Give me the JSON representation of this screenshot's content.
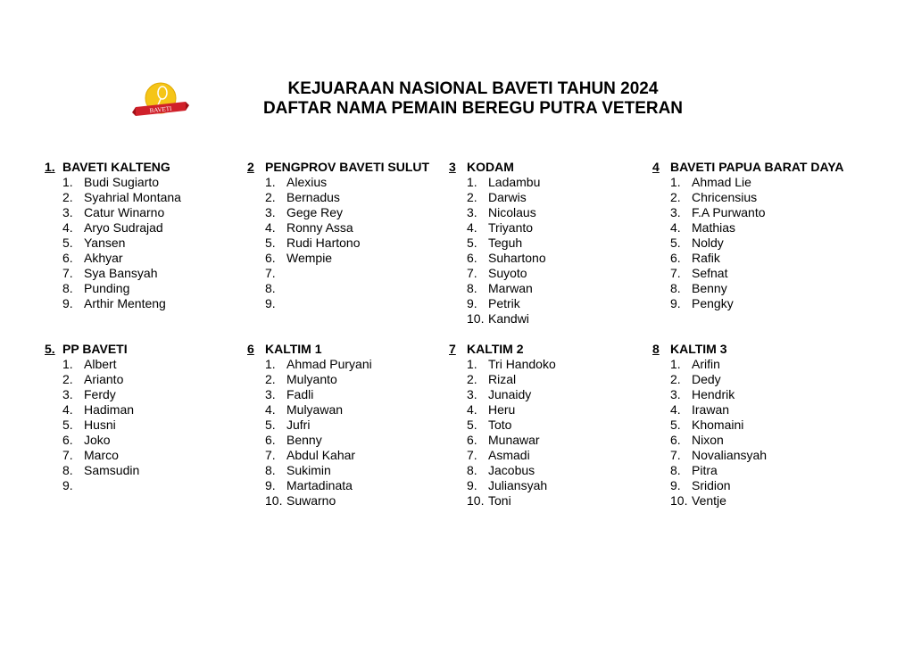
{
  "logo": {
    "text": "BAVETI",
    "colors": {
      "ball": "#f5c518",
      "ribbon": "#d0202a"
    }
  },
  "title": {
    "line1": "KEJUARAAN NASIONAL BAVETI TAHUN 2024",
    "line2": "DAFTAR NAMA PEMAIN BEREGU PUTRA VETERAN"
  },
  "teams": [
    {
      "number": "1.",
      "name": "BAVETI KALTENG",
      "players": [
        "Budi Sugiarto",
        "Syahrial Montana",
        "Catur Winarno",
        "Aryo Sudrajad",
        "Yansen",
        "Akhyar",
        "Sya Bansyah",
        "Punding",
        "Arthir Menteng"
      ]
    },
    {
      "number": "2",
      "name": "PENGPROV BAVETI SULUT",
      "players": [
        "Alexius",
        "Bernadus",
        "Gege Rey",
        "Ronny Assa",
        "Rudi Hartono",
        "Wempie",
        "",
        "",
        ""
      ]
    },
    {
      "number": "3",
      "name": "KODAM",
      "players": [
        "Ladambu",
        "Darwis",
        "Nicolaus",
        "Triyanto",
        "Teguh",
        "Suhartono",
        "Suyoto",
        "Marwan",
        "Petrik",
        "Kandwi"
      ]
    },
    {
      "number": "4",
      "name": "BAVETI PAPUA BARAT DAYA",
      "players": [
        "Ahmad Lie",
        "Chricensius",
        "F.A Purwanto",
        "Mathias",
        "Noldy",
        "Rafik",
        "Sefnat",
        "Benny",
        "Pengky"
      ]
    },
    {
      "number": "5.",
      "name": "PP BAVETI",
      "players": [
        "Albert",
        "Arianto",
        "Ferdy",
        "Hadiman",
        "Husni",
        "Joko",
        "Marco",
        "Samsudin",
        ""
      ]
    },
    {
      "number": "6",
      "name": "KALTIM 1",
      "players": [
        "Ahmad Puryani",
        "Mulyanto",
        "Fadli",
        "Mulyawan",
        "Jufri",
        "Benny",
        "Abdul Kahar",
        "Sukimin",
        "Martadinata",
        "Suwarno"
      ]
    },
    {
      "number": "7",
      "name": "KALTIM 2",
      "players": [
        "Tri Handoko",
        "Rizal",
        "Junaidy",
        "Heru",
        "Toto",
        "Munawar",
        "Asmadi",
        "Jacobus",
        "Juliansyah",
        "Toni"
      ]
    },
    {
      "number": "8",
      "name": "KALTIM 3",
      "players": [
        "Arifin",
        "Dedy",
        "Hendrik",
        "Irawan",
        "Khomaini",
        "Nixon",
        "Novaliansyah",
        "Pitra",
        "Sridion",
        "Ventje"
      ]
    }
  ]
}
